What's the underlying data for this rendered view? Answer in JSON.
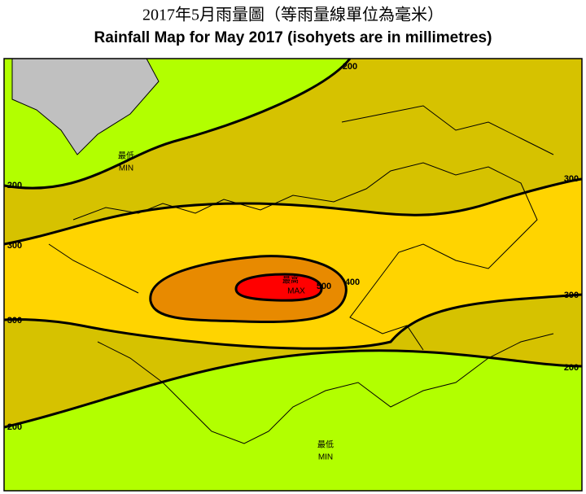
{
  "header": {
    "title_zh": "2017年5月雨量圖（等雨量線單位為毫米）",
    "title_en": "Rainfall Map for May 2017 (isohyets are in millimetres)"
  },
  "map": {
    "isohyet_labels": [
      200,
      200,
      200,
      200,
      300,
      300,
      300,
      300,
      400,
      500
    ],
    "min_labels": [
      {
        "zh": "最低",
        "en": "MIN"
      },
      {
        "zh": "最低",
        "en": "MIN"
      }
    ],
    "max_label": {
      "zh": "最高",
      "en": "MAX"
    }
  }
}
